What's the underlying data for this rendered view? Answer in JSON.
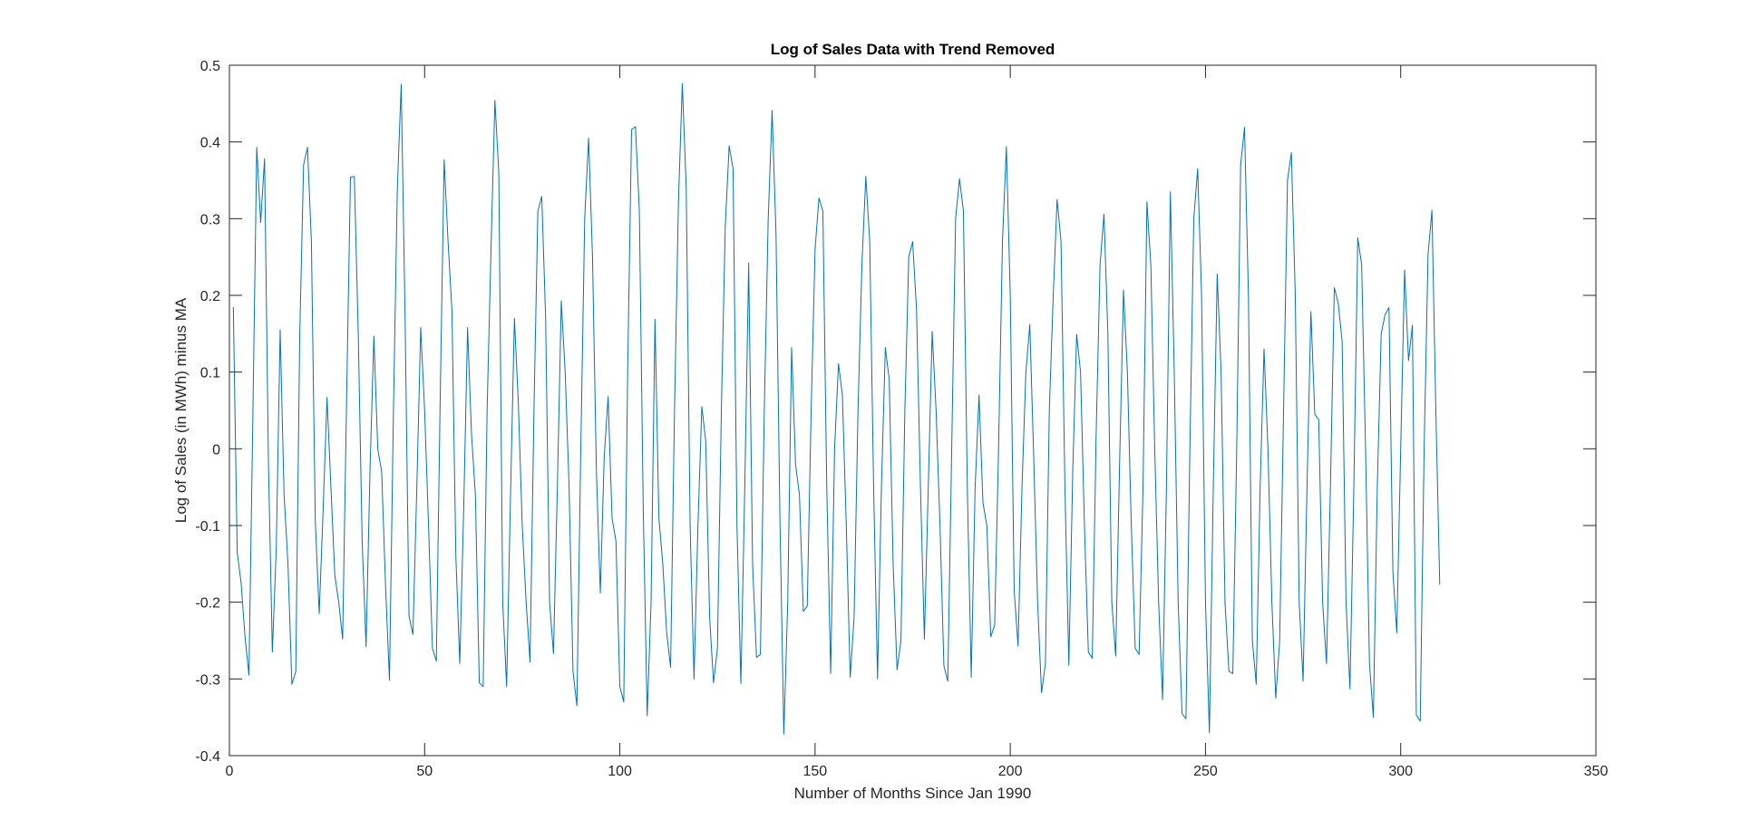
{
  "chart_data": {
    "type": "line",
    "title": "Log of Sales Data with Trend Removed",
    "xlabel": "Number of Months Since Jan 1990",
    "ylabel": "Log of Sales (in MWh) minus MA",
    "xlim": [
      0,
      350
    ],
    "ylim": [
      -0.4,
      0.5
    ],
    "xticks": [
      0,
      50,
      100,
      150,
      200,
      250,
      300,
      350
    ],
    "yticks": [
      -0.4,
      -0.3,
      -0.2,
      -0.1,
      0,
      0.1,
      0.2,
      0.3,
      0.4,
      0.5
    ],
    "grid": false,
    "series": [
      {
        "color": "#0072BD",
        "x_start": 1,
        "x_step": 1,
        "y": [
          0.185,
          -0.135,
          -0.175,
          -0.245,
          -0.295,
          0.04,
          0.393,
          0.295,
          0.378,
          -0.02,
          -0.265,
          -0.13,
          0.155,
          -0.06,
          -0.15,
          -0.307,
          -0.29,
          0.145,
          0.37,
          0.393,
          0.27,
          -0.095,
          -0.215,
          -0.08,
          0.067,
          -0.05,
          -0.165,
          -0.2,
          -0.248,
          0.06,
          0.354,
          0.355,
          0.15,
          -0.12,
          -0.258,
          -0.03,
          0.147,
          0.0,
          -0.03,
          -0.18,
          -0.302,
          0.045,
          0.338,
          0.475,
          0.17,
          -0.218,
          -0.242,
          -0.05,
          0.158,
          0.05,
          -0.1,
          -0.26,
          -0.277,
          0.07,
          0.377,
          0.27,
          0.18,
          -0.14,
          -0.28,
          -0.08,
          0.158,
          0.02,
          -0.06,
          -0.305,
          -0.31,
          0.05,
          0.26,
          0.454,
          0.36,
          -0.2,
          -0.31,
          -0.06,
          0.17,
          0.06,
          -0.1,
          -0.2,
          -0.278,
          0.05,
          0.31,
          0.329,
          0.17,
          -0.2,
          -0.267,
          -0.05,
          0.193,
          0.1,
          -0.05,
          -0.29,
          -0.335,
          0.0,
          0.3,
          0.405,
          0.25,
          -0.03,
          -0.188,
          -0.01,
          0.068,
          -0.09,
          -0.12,
          -0.31,
          -0.33,
          0.1,
          0.416,
          0.42,
          0.31,
          -0.08,
          -0.348,
          -0.2,
          0.169,
          -0.09,
          -0.15,
          -0.24,
          -0.285,
          0.05,
          0.32,
          0.476,
          0.34,
          -0.1,
          -0.3,
          -0.1,
          0.055,
          0.01,
          -0.22,
          -0.305,
          -0.26,
          0.05,
          0.29,
          0.395,
          0.365,
          -0.1,
          -0.306,
          -0.05,
          0.242,
          -0.15,
          -0.272,
          -0.268,
          0.05,
          0.3,
          0.441,
          0.28,
          -0.09,
          -0.372,
          -0.2,
          0.132,
          -0.02,
          -0.06,
          -0.212,
          -0.205,
          0.05,
          0.26,
          0.327,
          0.31,
          -0.05,
          -0.293,
          0.0,
          0.111,
          0.07,
          -0.1,
          -0.298,
          -0.22,
          0.05,
          0.24,
          0.355,
          0.27,
          -0.05,
          -0.3,
          -0.05,
          0.132,
          0.09,
          -0.15,
          -0.288,
          -0.25,
          0.05,
          0.25,
          0.27,
          0.18,
          -0.05,
          -0.248,
          -0.05,
          0.153,
          0.05,
          -0.1,
          -0.283,
          -0.303,
          0.0,
          0.3,
          0.352,
          0.31,
          -0.05,
          -0.298,
          -0.05,
          0.07,
          -0.07,
          -0.1,
          -0.245,
          -0.23,
          0.0,
          0.27,
          0.394,
          0.2,
          -0.185,
          -0.257,
          -0.05,
          0.1,
          0.162,
          -0.01,
          -0.2,
          -0.318,
          -0.28,
          0.05,
          0.2,
          0.325,
          0.27,
          -0.05,
          -0.282,
          -0.03,
          0.149,
          0.1,
          -0.1,
          -0.265,
          -0.273,
          0.02,
          0.24,
          0.306,
          0.15,
          -0.2,
          -0.27,
          -0.02,
          0.207,
          0.1,
          -0.1,
          -0.26,
          -0.268,
          -0.05,
          0.322,
          0.24,
          0.0,
          -0.2,
          -0.327,
          -0.05,
          0.335,
          0.1,
          -0.2,
          -0.345,
          -0.352,
          0.0,
          0.3,
          0.365,
          0.2,
          -0.2,
          -0.37,
          -0.05,
          0.228,
          0.1,
          -0.2,
          -0.29,
          -0.293,
          0.0,
          0.37,
          0.419,
          0.2,
          -0.25,
          -0.307,
          -0.05,
          0.13,
          0.0,
          -0.2,
          -0.325,
          -0.25,
          0.05,
          0.35,
          0.386,
          0.2,
          -0.2,
          -0.303,
          -0.05,
          0.179,
          0.045,
          0.038,
          -0.2,
          -0.28,
          -0.05,
          0.21,
          0.19,
          0.14,
          -0.2,
          -0.313,
          -0.05,
          0.275,
          0.24,
          0.0,
          -0.28,
          -0.35,
          -0.05,
          0.15,
          0.175,
          0.184,
          -0.16,
          -0.24,
          0.0,
          0.233,
          0.115,
          0.161,
          -0.347,
          -0.355,
          0.0,
          0.253,
          0.311,
          0.05,
          -0.177
        ]
      }
    ]
  }
}
